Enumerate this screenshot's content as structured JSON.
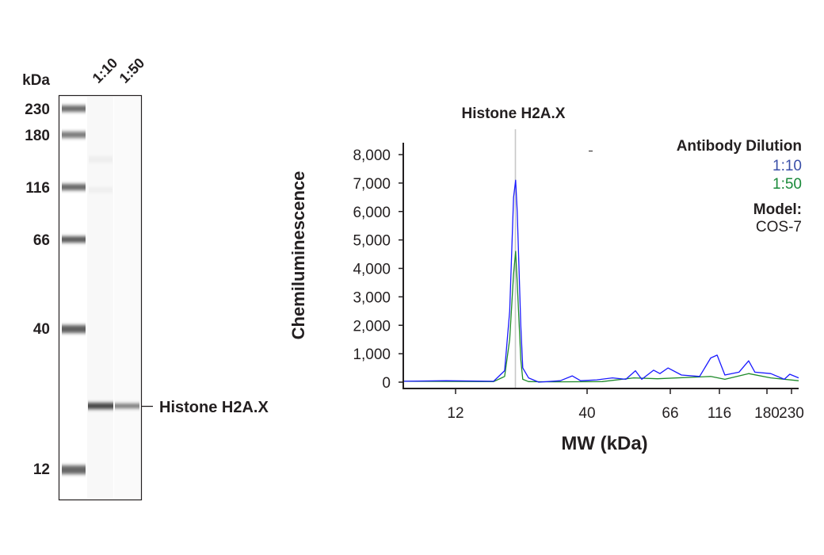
{
  "blot": {
    "unit_label": "kDa",
    "lane_labels": [
      "1:10",
      "1:50"
    ],
    "markers": [
      "230",
      "180",
      "116",
      "66",
      "40",
      "12"
    ],
    "target_label": "Histone H2A.X"
  },
  "chart_data": {
    "type": "line",
    "title": "Histone H2A.X",
    "xlabel": "MW (kDa)",
    "ylabel": "Chemiluminescence",
    "x_scale": "non-uniform (ladder-calibrated), log-like",
    "xlim": [
      7.4,
      247
    ],
    "ylim": [
      0,
      8000
    ],
    "x_ticks": [
      12,
      40,
      66,
      116,
      180,
      230
    ],
    "x_tick_labels": [
      "12",
      "40",
      "66",
      "116",
      "180",
      "230"
    ],
    "y_ticks": [
      0,
      1000,
      2000,
      3000,
      4000,
      5000,
      6000,
      7000,
      8000
    ],
    "y_tick_labels": [
      "0",
      "1,000",
      "2,000",
      "3,000",
      "4,000",
      "5,000",
      "6,000",
      "7,000",
      "8,000"
    ],
    "target_marker_kDa": 20.8,
    "legend": {
      "title": "Antibody Dilution",
      "placement": "top-right",
      "model_label": "Model:",
      "model_value": "COS-7"
    },
    "series": [
      {
        "name": "1:10",
        "color": "#1a1aff",
        "label_color": "#3a4fa8",
        "points": [
          [
            7.4,
            30
          ],
          [
            11.0,
            50
          ],
          [
            17.0,
            30
          ],
          [
            18.8,
            400
          ],
          [
            19.7,
            2500
          ],
          [
            20.4,
            6500
          ],
          [
            20.8,
            7100
          ],
          [
            21.1,
            6000
          ],
          [
            21.8,
            2000
          ],
          [
            22.2,
            500
          ],
          [
            23.4,
            150
          ],
          [
            25.7,
            0
          ],
          [
            31.3,
            50
          ],
          [
            34.9,
            220
          ],
          [
            37.7,
            50
          ],
          [
            42.4,
            80
          ],
          [
            46.6,
            150
          ],
          [
            50.5,
            100
          ],
          [
            53.5,
            400
          ],
          [
            55.6,
            100
          ],
          [
            59.7,
            420
          ],
          [
            62.0,
            300
          ],
          [
            65.1,
            500
          ],
          [
            75.0,
            250
          ],
          [
            92.4,
            200
          ],
          [
            105,
            850
          ],
          [
            113,
            950
          ],
          [
            122,
            250
          ],
          [
            139,
            350
          ],
          [
            152,
            750
          ],
          [
            161,
            350
          ],
          [
            187,
            300
          ],
          [
            214,
            100
          ],
          [
            226,
            280
          ],
          [
            247,
            150
          ]
        ]
      },
      {
        "name": "1:50",
        "color": "#1e8a2a",
        "label_color": "#1a8a3a",
        "points": [
          [
            7.4,
            30
          ],
          [
            17.0,
            20
          ],
          [
            18.8,
            200
          ],
          [
            19.7,
            1500
          ],
          [
            20.4,
            3800
          ],
          [
            20.8,
            4600
          ],
          [
            21.1,
            3500
          ],
          [
            21.8,
            800
          ],
          [
            22.2,
            100
          ],
          [
            23.4,
            20
          ],
          [
            29.7,
            10
          ],
          [
            43.8,
            20
          ],
          [
            53.0,
            150
          ],
          [
            61.1,
            120
          ],
          [
            105,
            200
          ],
          [
            122,
            100
          ],
          [
            152,
            300
          ],
          [
            187,
            150
          ],
          [
            247,
            50
          ]
        ]
      }
    ]
  }
}
